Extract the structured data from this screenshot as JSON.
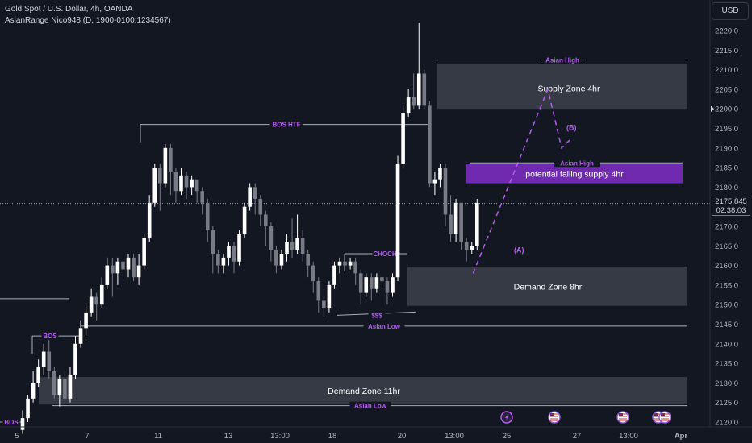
{
  "header": {
    "title": "Gold Spot / U.S. Dollar, 4h, OANDA",
    "indicator": "AsianRange Nico948 (D, 1900-0100:1234567)"
  },
  "currency_button": "USD",
  "last_price": {
    "value": "2175.845",
    "countdown": "02:38:03"
  },
  "colors": {
    "background": "#131722",
    "up_candle": "#ffffff",
    "down_candle": "#787b86",
    "zone_fill": "#787b86",
    "failing_supply_fill": "#7b2cbf",
    "annotation_purple": "#b45cf0",
    "axis_text": "#b2b5be",
    "level_line": "#d1d4dc"
  },
  "chart_data": {
    "type": "candlestick",
    "y_axis": {
      "min": 2117,
      "max": 2224,
      "ticks": [
        2120,
        2125,
        2130,
        2135,
        2140,
        2145,
        2150,
        2155,
        2160,
        2165,
        2170,
        2175,
        2180,
        2185,
        2190,
        2195,
        2200,
        2205,
        2210,
        2215,
        2220
      ],
      "side": "right"
    },
    "x_axis": {
      "ticks": [
        "5",
        "7",
        "11",
        "13",
        "13:00",
        "18",
        "20",
        "13:00",
        "25",
        "27",
        "13:00",
        "Apr"
      ]
    },
    "candles": [
      [
        2118,
        2121,
        2117,
        2123
      ],
      [
        2121,
        2126,
        2120,
        2127
      ],
      [
        2126,
        2130,
        2125,
        2133
      ],
      [
        2130,
        2134,
        2129,
        2136
      ],
      [
        2134,
        2138,
        2132,
        2140
      ],
      [
        2138,
        2133,
        2131,
        2141
      ],
      [
        2133,
        2127,
        2126,
        2134
      ],
      [
        2127,
        2131,
        2124,
        2132
      ],
      [
        2131,
        2126,
        2125,
        2133
      ],
      [
        2126,
        2132,
        2125,
        2134
      ],
      [
        2132,
        2140,
        2131,
        2142
      ],
      [
        2140,
        2144,
        2139,
        2146
      ],
      [
        2144,
        2148,
        2142,
        2150
      ],
      [
        2148,
        2152,
        2147,
        2154
      ],
      [
        2152,
        2150,
        2146,
        2153
      ],
      [
        2150,
        2155,
        2149,
        2157
      ],
      [
        2155,
        2160,
        2154,
        2162
      ],
      [
        2160,
        2158,
        2152,
        2162
      ],
      [
        2158,
        2161,
        2155,
        2162
      ],
      [
        2161,
        2159,
        2156,
        2161
      ],
      [
        2159,
        2162,
        2157,
        2163
      ],
      [
        2162,
        2157,
        2156,
        2163
      ],
      [
        2157,
        2160,
        2155,
        2163
      ],
      [
        2160,
        2167,
        2159,
        2168
      ],
      [
        2167,
        2176,
        2166,
        2178
      ],
      [
        2176,
        2185,
        2175,
        2186
      ],
      [
        2185,
        2181,
        2174,
        2186
      ],
      [
        2181,
        2190,
        2180,
        2191
      ],
      [
        2190,
        2184,
        2178,
        2191
      ],
      [
        2184,
        2179,
        2176,
        2185
      ],
      [
        2179,
        2183,
        2178,
        2185
      ],
      [
        2183,
        2180,
        2177,
        2184
      ],
      [
        2180,
        2182,
        2178,
        2183
      ],
      [
        2182,
        2179,
        2176,
        2182
      ],
      [
        2179,
        2176,
        2173,
        2180
      ],
      [
        2176,
        2169,
        2166,
        2177
      ],
      [
        2169,
        2163,
        2158,
        2170
      ],
      [
        2163,
        2160,
        2158,
        2164
      ],
      [
        2160,
        2162,
        2158,
        2163
      ],
      [
        2162,
        2165,
        2160,
        2166
      ],
      [
        2165,
        2161,
        2158,
        2166
      ],
      [
        2161,
        2168,
        2160,
        2169
      ],
      [
        2168,
        2175,
        2167,
        2176
      ],
      [
        2175,
        2180,
        2174,
        2181
      ],
      [
        2180,
        2177,
        2173,
        2181
      ],
      [
        2177,
        2173,
        2170,
        2178
      ],
      [
        2173,
        2170,
        2165,
        2174
      ],
      [
        2170,
        2164,
        2161,
        2171
      ],
      [
        2164,
        2160,
        2158,
        2165
      ],
      [
        2160,
        2163,
        2159,
        2164
      ],
      [
        2163,
        2166,
        2161,
        2168
      ],
      [
        2166,
        2164,
        2162,
        2172
      ],
      [
        2164,
        2167,
        2163,
        2173
      ],
      [
        2167,
        2163,
        2161,
        2169
      ],
      [
        2163,
        2160,
        2157,
        2164
      ],
      [
        2160,
        2156,
        2153,
        2161
      ],
      [
        2156,
        2151,
        2148,
        2157
      ],
      [
        2151,
        2149,
        2147,
        2152
      ],
      [
        2149,
        2155,
        2148,
        2156
      ],
      [
        2155,
        2160,
        2154,
        2161
      ],
      [
        2160,
        2161,
        2158,
        2162
      ],
      [
        2161,
        2160,
        2158,
        2161
      ],
      [
        2160,
        2161,
        2159,
        2162
      ],
      [
        2161,
        2158,
        2155,
        2162
      ],
      [
        2158,
        2153,
        2150,
        2159
      ],
      [
        2153,
        2157,
        2152,
        2158
      ],
      [
        2157,
        2154,
        2151,
        2158
      ],
      [
        2154,
        2157,
        2153,
        2158
      ],
      [
        2157,
        2156,
        2154,
        2157
      ],
      [
        2156,
        2153,
        2150,
        2157
      ],
      [
        2153,
        2157,
        2152,
        2158
      ],
      [
        2157,
        2186,
        2156,
        2188
      ],
      [
        2186,
        2199,
        2185,
        2201
      ],
      [
        2199,
        2203,
        2198,
        2205
      ],
      [
        2203,
        2201,
        2200,
        2209
      ],
      [
        2201,
        2209,
        2200,
        2222
      ],
      [
        2209,
        2201,
        2200,
        2210
      ],
      [
        2201,
        2181,
        2180,
        2202
      ],
      [
        2181,
        2182,
        2178,
        2184
      ],
      [
        2182,
        2185,
        2180,
        2186
      ],
      [
        2185,
        2173,
        2170,
        2186
      ],
      [
        2173,
        2168,
        2166,
        2178
      ],
      [
        2168,
        2176,
        2166,
        2177
      ],
      [
        2176,
        2166,
        2164,
        2176
      ],
      [
        2166,
        2164,
        2161,
        2167
      ],
      [
        2164,
        2165,
        2163,
        2166
      ],
      [
        2165,
        2176,
        2164,
        2177
      ]
    ],
    "zones": [
      {
        "label": "Supply Zone 4hr",
        "top": 2211.5,
        "bottom": 2200
      },
      {
        "label": "potential failing supply 4hr",
        "top": 2186,
        "bottom": 2181
      },
      {
        "label": "Demand Zone 8hr",
        "top": 2159.7,
        "bottom": 2149.7
      },
      {
        "label": "Demand Zone 11hr",
        "top": 2131.5,
        "bottom": 2124.5
      }
    ],
    "levels": [
      {
        "label": "Asian High",
        "price": 2212.5
      },
      {
        "label": "BOS HTF",
        "price": 2196
      },
      {
        "label": "Asian High",
        "price": 2186.2
      },
      {
        "label": "CHOCH",
        "price": 2163
      },
      {
        "label": "$$$",
        "price": 2147.3
      },
      {
        "label": "Asian Low",
        "price": 2144.5
      },
      {
        "label": "BOS",
        "price": 2142
      },
      {
        "label": "Asian Low",
        "price": 2124.2
      },
      {
        "label": "BOS",
        "price": 2120
      }
    ],
    "projection_labels": [
      "(A)",
      "(B)"
    ],
    "last_price": 2175.845
  }
}
